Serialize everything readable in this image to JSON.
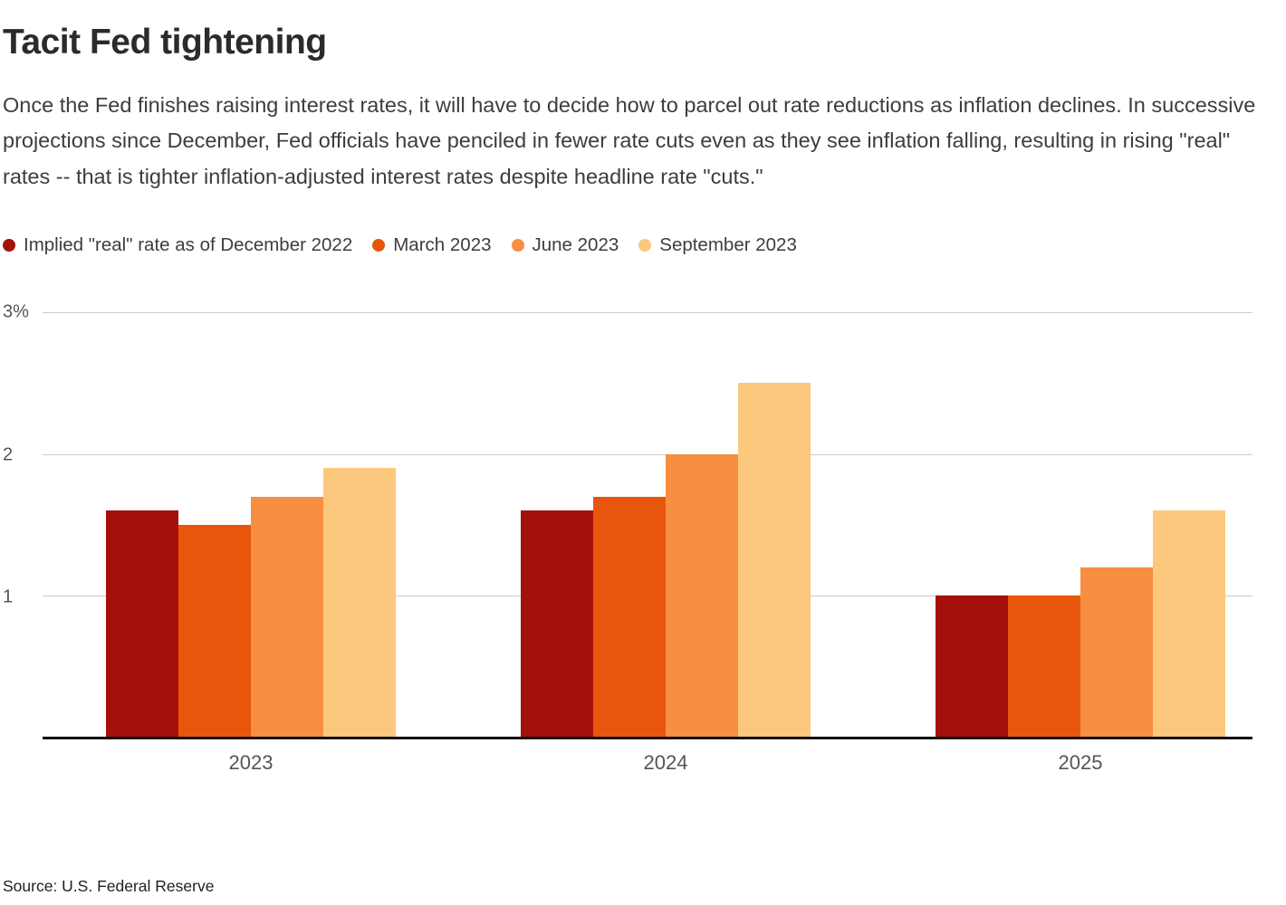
{
  "header": {
    "title": "Tacit Fed tightening",
    "subtitle": "Once the Fed finishes raising interest rates, it will have to decide how to parcel out rate reductions as inflation declines. In successive projections since December, Fed officials have penciled in fewer rate cuts even as they see inflation falling, resulting in rising \"real\" rates -- that is tighter inflation-adjusted interest rates despite headline rate \"cuts.\""
  },
  "chart_data": {
    "type": "bar",
    "title": "Tacit Fed tightening",
    "categories": [
      "2023",
      "2024",
      "2025"
    ],
    "series": [
      {
        "name": "Implied \"real\" rate as of December 2022",
        "color": "#a6100a",
        "values": [
          1.6,
          1.6,
          1.0
        ]
      },
      {
        "name": "March 2023",
        "color": "#e8560d",
        "values": [
          1.5,
          1.7,
          1.0
        ]
      },
      {
        "name": "June 2023",
        "color": "#f78e41",
        "values": [
          1.7,
          2.0,
          1.2
        ]
      },
      {
        "name": "September 2023",
        "color": "#fbc87d",
        "values": [
          1.9,
          2.5,
          1.6
        ]
      }
    ],
    "ylim": [
      0,
      3
    ],
    "yticks": [
      {
        "value": 3,
        "label": "3%"
      },
      {
        "value": 2,
        "label": "2"
      },
      {
        "value": 1,
        "label": "1"
      }
    ],
    "grid": true,
    "legend_position": "top",
    "xlabel": "",
    "ylabel": ""
  },
  "footer": {
    "source": "Source: U.S. Federal Reserve"
  }
}
